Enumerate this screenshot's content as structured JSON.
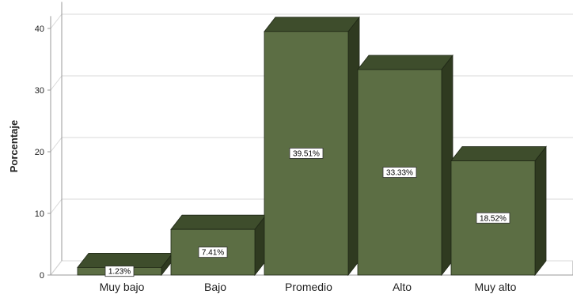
{
  "chart_data": {
    "type": "bar",
    "title": "",
    "xlabel": "",
    "ylabel": "Porcentaje",
    "categories": [
      "Muy bajo",
      "Bajo",
      "Promedio",
      "Alto",
      "Muy alto"
    ],
    "values": [
      1.23,
      7.41,
      39.51,
      33.33,
      18.52
    ],
    "data_labels": [
      "1.23%",
      "7.41%",
      "39.51%",
      "33.33%",
      "18.52%"
    ],
    "ylim": [
      0,
      42
    ],
    "yticks": [
      0,
      10,
      20,
      30,
      40
    ],
    "ytick_labels": [
      "0",
      "10",
      "20",
      "30",
      "40"
    ],
    "grid": true,
    "bars_3d": true,
    "colors": {
      "bar_front": "#5c6e44",
      "bar_top": "#3e4d2c",
      "bar_side": "#2f3a20",
      "bar_outline": "#1f2716",
      "grid": "#d9d9d9",
      "axis": "#9a9a9a"
    }
  }
}
